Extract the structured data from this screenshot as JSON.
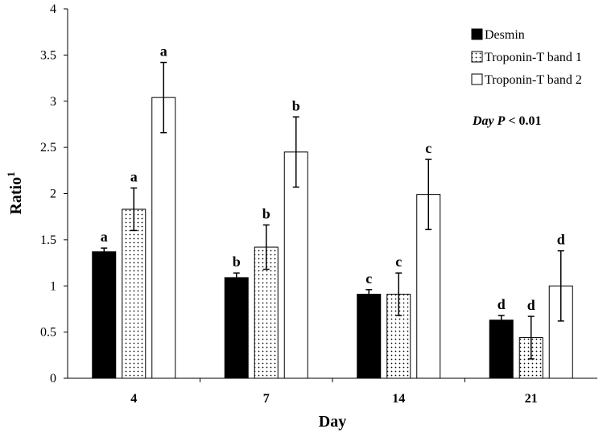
{
  "chart_data": {
    "type": "bar",
    "title": "",
    "xlabel": "Day",
    "ylabel": "Ratio",
    "ylabel_superscript": "1",
    "ylim": [
      0,
      4
    ],
    "yticks": [
      "0",
      "0.5",
      "1",
      "1.5",
      "2",
      "2.5",
      "3",
      "3.5",
      "4"
    ],
    "ytick_values": [
      0,
      0.5,
      1,
      1.5,
      2,
      2.5,
      3,
      3.5,
      4
    ],
    "categories": [
      "4",
      "7",
      "14",
      "21"
    ],
    "grid": false,
    "legend_position": "top-right",
    "series": [
      {
        "name": "Desmin",
        "fill": "solid",
        "color": "#000000",
        "values": [
          1.37,
          1.09,
          0.91,
          0.63
        ],
        "errors": [
          0.04,
          0.05,
          0.05,
          0.05
        ],
        "letters": [
          "a",
          "b",
          "c",
          "d"
        ]
      },
      {
        "name": "Troponin-T band 1",
        "fill": "dotted",
        "color": "#ffffff",
        "values": [
          1.83,
          1.42,
          0.91,
          0.44
        ],
        "errors": [
          0.23,
          0.24,
          0.23,
          0.23
        ],
        "letters": [
          "a",
          "b",
          "c",
          "d"
        ]
      },
      {
        "name": "Troponin-T band 2",
        "fill": "open",
        "color": "#ffffff",
        "values": [
          3.04,
          2.45,
          1.99,
          1.0
        ],
        "errors": [
          0.38,
          0.38,
          0.38,
          0.38
        ],
        "letters": [
          "a",
          "b",
          "c",
          "d"
        ]
      }
    ],
    "annotation": {
      "prefix": "Day ",
      "p_symbol": "P",
      "suffix": " < 0.01"
    }
  }
}
